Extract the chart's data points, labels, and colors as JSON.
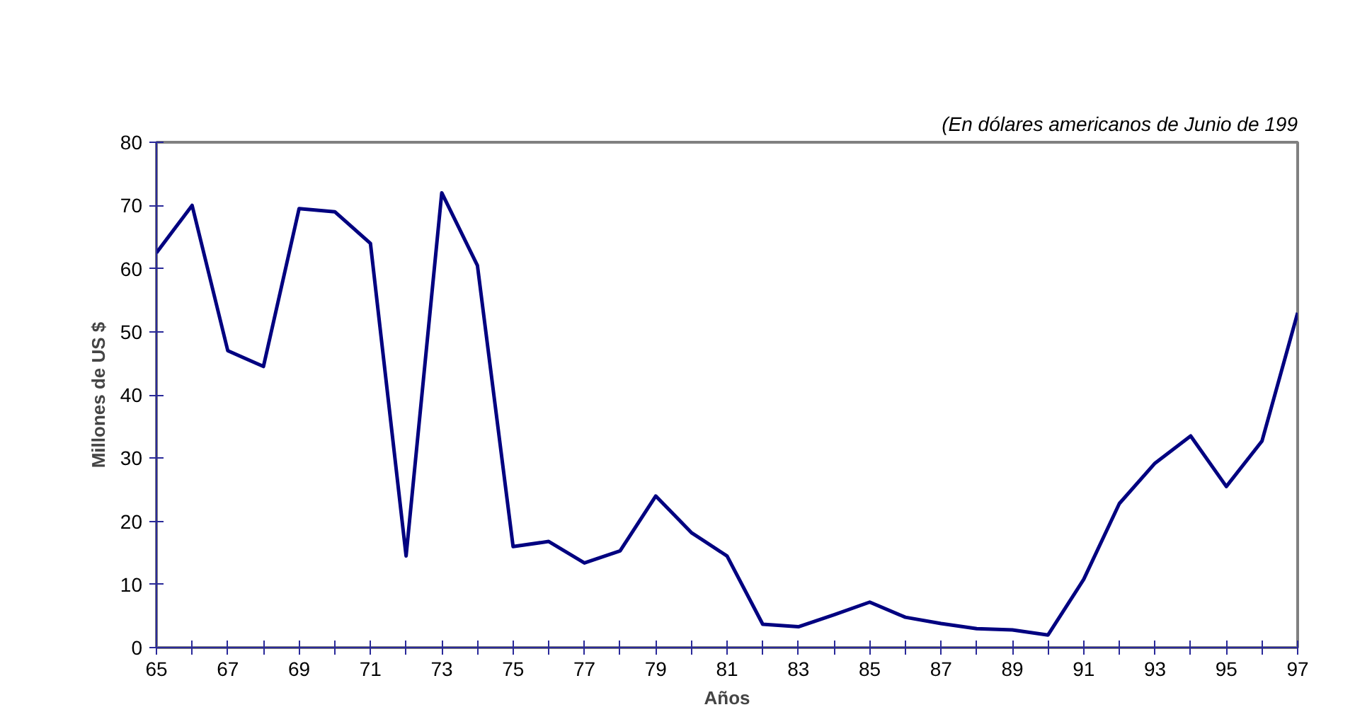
{
  "chart_data": {
    "type": "line",
    "subtitle": "(En dólares americanos de Junio de 199",
    "xlabel": "Años",
    "ylabel": "Millones de US $",
    "x": [
      65,
      66,
      67,
      68,
      69,
      70,
      71,
      72,
      73,
      74,
      75,
      76,
      77,
      78,
      79,
      80,
      81,
      82,
      83,
      84,
      85,
      86,
      87,
      88,
      89,
      90,
      91,
      92,
      93,
      94,
      95,
      96,
      97
    ],
    "series": [
      {
        "color": "#000080",
        "values": [
          62.5,
          70,
          47,
          44.5,
          69.5,
          69,
          64,
          14.5,
          72,
          60.5,
          16,
          16.8,
          13.4,
          15.3,
          24,
          18.2,
          14.5,
          3.7,
          3.3,
          5.2,
          7.2,
          4.8,
          3.8,
          3,
          2.8,
          2,
          10.8,
          22.8,
          29.2,
          33.5,
          25.5,
          32.7,
          53
        ]
      }
    ],
    "xlim": [
      65,
      97
    ],
    "ylim": [
      0,
      80
    ],
    "xticks": [
      65,
      {
        "value": 66,
        "label": null
      },
      67,
      {
        "value": 68,
        "label": null
      },
      69,
      {
        "value": 70,
        "label": null
      },
      71,
      {
        "value": 72,
        "label": null
      },
      73,
      {
        "value": 74,
        "label": null
      },
      75,
      {
        "value": 76,
        "label": null
      },
      77,
      {
        "value": 78,
        "label": null
      },
      79,
      {
        "value": 80,
        "label": null
      },
      81,
      {
        "value": 82,
        "label": null
      },
      83,
      {
        "value": 84,
        "label": null
      },
      85,
      {
        "value": 86,
        "label": null
      },
      87,
      {
        "value": 88,
        "label": null
      },
      89,
      {
        "value": 90,
        "label": null
      },
      91,
      {
        "value": 92,
        "label": null
      },
      93,
      {
        "value": 94,
        "label": null
      },
      95,
      {
        "value": 96,
        "label": null
      },
      97
    ],
    "yticks": [
      0,
      10,
      20,
      30,
      40,
      50,
      60,
      70,
      80
    ],
    "grid": false,
    "marker": "none",
    "line_style": "solid"
  }
}
